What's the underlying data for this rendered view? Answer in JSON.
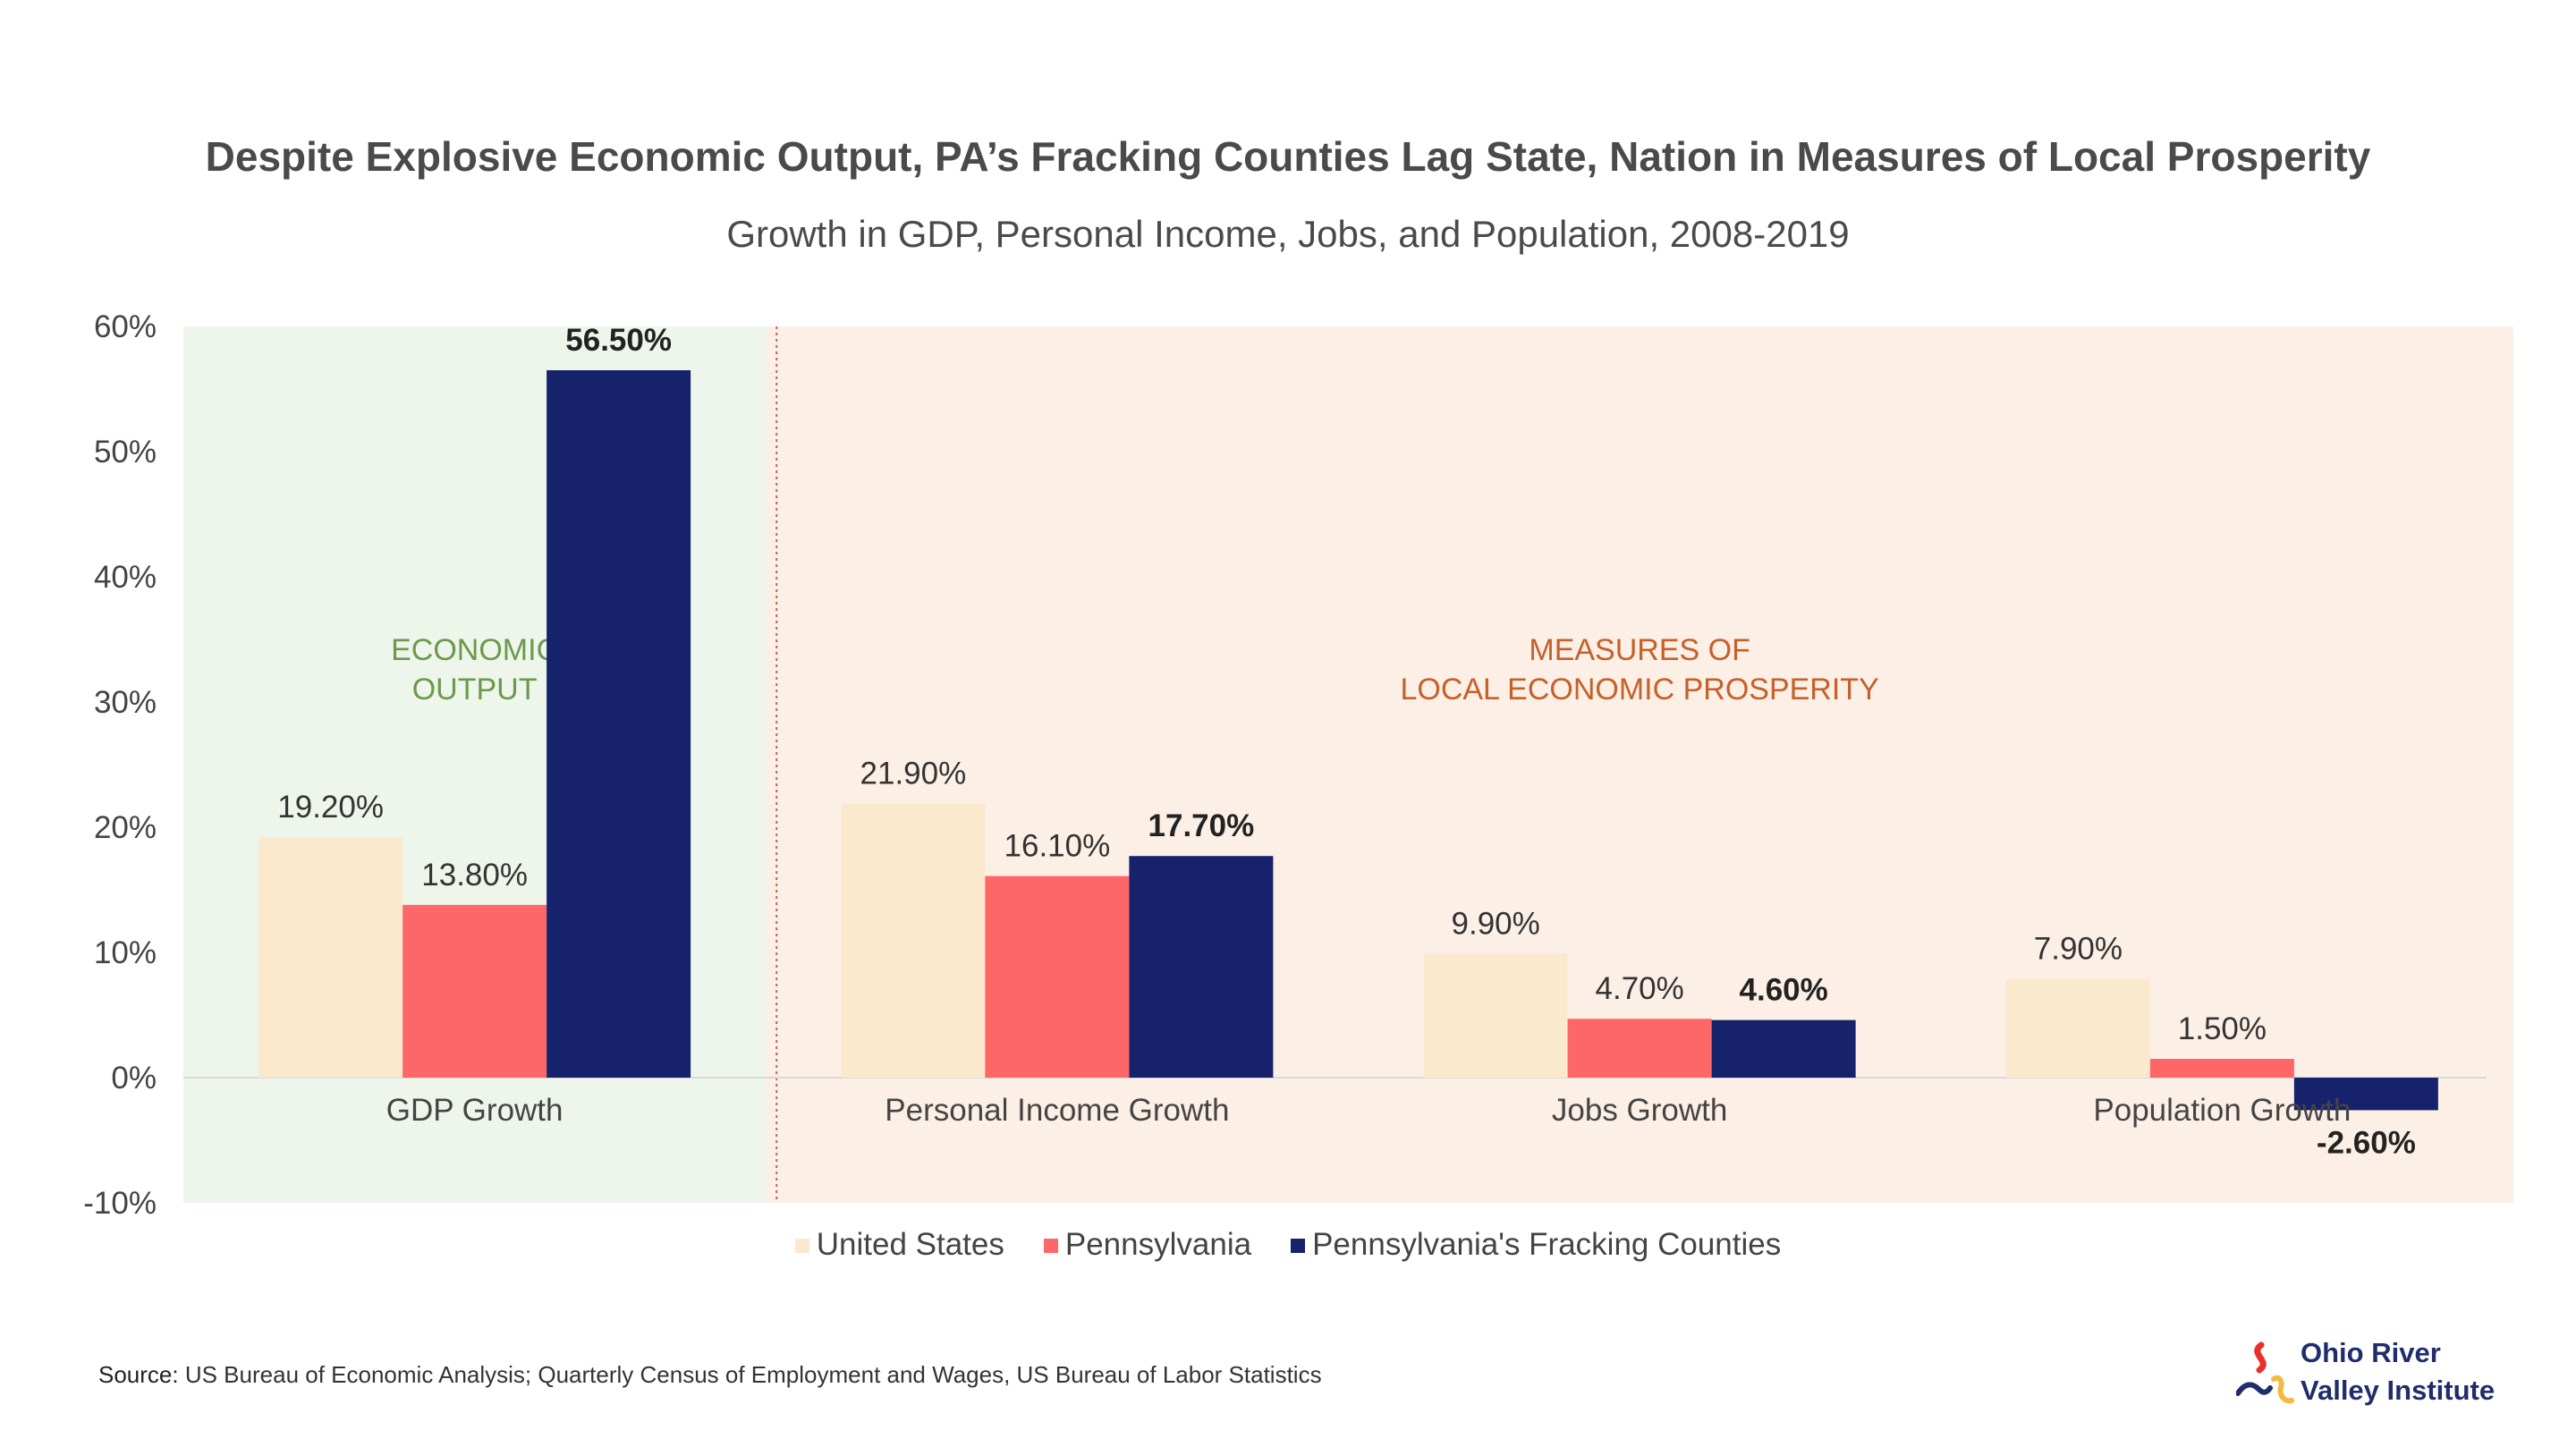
{
  "chart_data": {
    "type": "bar",
    "title": "Despite Explosive Economic Output, PA’s Fracking Counties Lag State, Nation in Measures of Local Prosperity",
    "subtitle": "Growth in GDP, Personal Income, Jobs, and Population, 2008-2019",
    "categories": [
      "GDP Growth",
      "Personal Income Growth",
      "Jobs Growth",
      "Population Growth"
    ],
    "series": [
      {
        "name": "United States",
        "color": "#fbe9cd",
        "values": [
          19.2,
          21.9,
          9.9,
          7.9
        ],
        "labels": [
          "19.20%",
          "21.90%",
          "9.90%",
          "7.90%"
        ]
      },
      {
        "name": "Pennsylvania",
        "color": "#fe6767",
        "values": [
          13.8,
          16.1,
          4.7,
          1.5
        ],
        "labels": [
          "13.80%",
          "16.10%",
          "4.70%",
          "1.50%"
        ]
      },
      {
        "name": "Pennsylvania's Fracking Counties",
        "color": "#16226b",
        "values": [
          56.5,
          17.7,
          4.6,
          -2.6
        ],
        "labels": [
          "56.50%",
          "17.70%",
          "4.60%",
          "-2.60%"
        ]
      }
    ],
    "ylim": [
      -10,
      60
    ],
    "yticks": [
      60,
      50,
      40,
      30,
      20,
      10,
      0,
      -10
    ],
    "ytick_labels": [
      "60%",
      "50%",
      "40%",
      "30%",
      "20%",
      "10%",
      "0%",
      "-10%"
    ],
    "panels": [
      {
        "label_lines": [
          "ECONOMIC",
          "OUTPUT"
        ],
        "color": "#6b9a4c",
        "background": "#eef5ea"
      },
      {
        "label_lines": [
          "MEASURES OF",
          "LOCAL ECONOMIC PROSPERITY"
        ],
        "color": "#c6602a",
        "background": "#fcefe6"
      }
    ],
    "legend_position": "bottom-center"
  },
  "footer": {
    "source_prefix": "Source:",
    "source_text": "US Bureau of Economic Analysis; Quarterly Census of Employment and Wages, US Bureau of Labor Statistics"
  },
  "logo": {
    "line1": "Ohio River",
    "line2": "Valley Institute",
    "colors": [
      "#e8302f",
      "#f4b940",
      "#1f2d6b"
    ]
  }
}
